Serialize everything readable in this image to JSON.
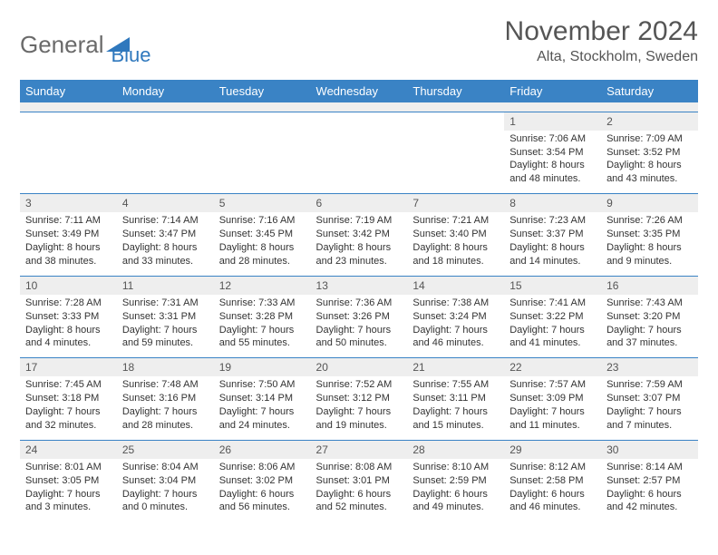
{
  "brand": {
    "part1": "General",
    "part2": "Blue",
    "triangle_color": "#2f78bd"
  },
  "title": "November 2024",
  "location": "Alta, Stockholm, Sweden",
  "header_bg": "#3a83c5",
  "daynum_bg": "#eeeeee",
  "border_color": "#3a83c5",
  "weekdays": [
    "Sunday",
    "Monday",
    "Tuesday",
    "Wednesday",
    "Thursday",
    "Friday",
    "Saturday"
  ],
  "first_weekday_index": 5,
  "days": [
    {
      "n": "1",
      "sunrise": "7:06 AM",
      "sunset": "3:54 PM",
      "daylight": "8 hours and 48 minutes."
    },
    {
      "n": "2",
      "sunrise": "7:09 AM",
      "sunset": "3:52 PM",
      "daylight": "8 hours and 43 minutes."
    },
    {
      "n": "3",
      "sunrise": "7:11 AM",
      "sunset": "3:49 PM",
      "daylight": "8 hours and 38 minutes."
    },
    {
      "n": "4",
      "sunrise": "7:14 AM",
      "sunset": "3:47 PM",
      "daylight": "8 hours and 33 minutes."
    },
    {
      "n": "5",
      "sunrise": "7:16 AM",
      "sunset": "3:45 PM",
      "daylight": "8 hours and 28 minutes."
    },
    {
      "n": "6",
      "sunrise": "7:19 AM",
      "sunset": "3:42 PM",
      "daylight": "8 hours and 23 minutes."
    },
    {
      "n": "7",
      "sunrise": "7:21 AM",
      "sunset": "3:40 PM",
      "daylight": "8 hours and 18 minutes."
    },
    {
      "n": "8",
      "sunrise": "7:23 AM",
      "sunset": "3:37 PM",
      "daylight": "8 hours and 14 minutes."
    },
    {
      "n": "9",
      "sunrise": "7:26 AM",
      "sunset": "3:35 PM",
      "daylight": "8 hours and 9 minutes."
    },
    {
      "n": "10",
      "sunrise": "7:28 AM",
      "sunset": "3:33 PM",
      "daylight": "8 hours and 4 minutes."
    },
    {
      "n": "11",
      "sunrise": "7:31 AM",
      "sunset": "3:31 PM",
      "daylight": "7 hours and 59 minutes."
    },
    {
      "n": "12",
      "sunrise": "7:33 AM",
      "sunset": "3:28 PM",
      "daylight": "7 hours and 55 minutes."
    },
    {
      "n": "13",
      "sunrise": "7:36 AM",
      "sunset": "3:26 PM",
      "daylight": "7 hours and 50 minutes."
    },
    {
      "n": "14",
      "sunrise": "7:38 AM",
      "sunset": "3:24 PM",
      "daylight": "7 hours and 46 minutes."
    },
    {
      "n": "15",
      "sunrise": "7:41 AM",
      "sunset": "3:22 PM",
      "daylight": "7 hours and 41 minutes."
    },
    {
      "n": "16",
      "sunrise": "7:43 AM",
      "sunset": "3:20 PM",
      "daylight": "7 hours and 37 minutes."
    },
    {
      "n": "17",
      "sunrise": "7:45 AM",
      "sunset": "3:18 PM",
      "daylight": "7 hours and 32 minutes."
    },
    {
      "n": "18",
      "sunrise": "7:48 AM",
      "sunset": "3:16 PM",
      "daylight": "7 hours and 28 minutes."
    },
    {
      "n": "19",
      "sunrise": "7:50 AM",
      "sunset": "3:14 PM",
      "daylight": "7 hours and 24 minutes."
    },
    {
      "n": "20",
      "sunrise": "7:52 AM",
      "sunset": "3:12 PM",
      "daylight": "7 hours and 19 minutes."
    },
    {
      "n": "21",
      "sunrise": "7:55 AM",
      "sunset": "3:11 PM",
      "daylight": "7 hours and 15 minutes."
    },
    {
      "n": "22",
      "sunrise": "7:57 AM",
      "sunset": "3:09 PM",
      "daylight": "7 hours and 11 minutes."
    },
    {
      "n": "23",
      "sunrise": "7:59 AM",
      "sunset": "3:07 PM",
      "daylight": "7 hours and 7 minutes."
    },
    {
      "n": "24",
      "sunrise": "8:01 AM",
      "sunset": "3:05 PM",
      "daylight": "7 hours and 3 minutes."
    },
    {
      "n": "25",
      "sunrise": "8:04 AM",
      "sunset": "3:04 PM",
      "daylight": "7 hours and 0 minutes."
    },
    {
      "n": "26",
      "sunrise": "8:06 AM",
      "sunset": "3:02 PM",
      "daylight": "6 hours and 56 minutes."
    },
    {
      "n": "27",
      "sunrise": "8:08 AM",
      "sunset": "3:01 PM",
      "daylight": "6 hours and 52 minutes."
    },
    {
      "n": "28",
      "sunrise": "8:10 AM",
      "sunset": "2:59 PM",
      "daylight": "6 hours and 49 minutes."
    },
    {
      "n": "29",
      "sunrise": "8:12 AM",
      "sunset": "2:58 PM",
      "daylight": "6 hours and 46 minutes."
    },
    {
      "n": "30",
      "sunrise": "8:14 AM",
      "sunset": "2:57 PM",
      "daylight": "6 hours and 42 minutes."
    }
  ],
  "labels": {
    "sunrise": "Sunrise:",
    "sunset": "Sunset:",
    "daylight": "Daylight:"
  }
}
